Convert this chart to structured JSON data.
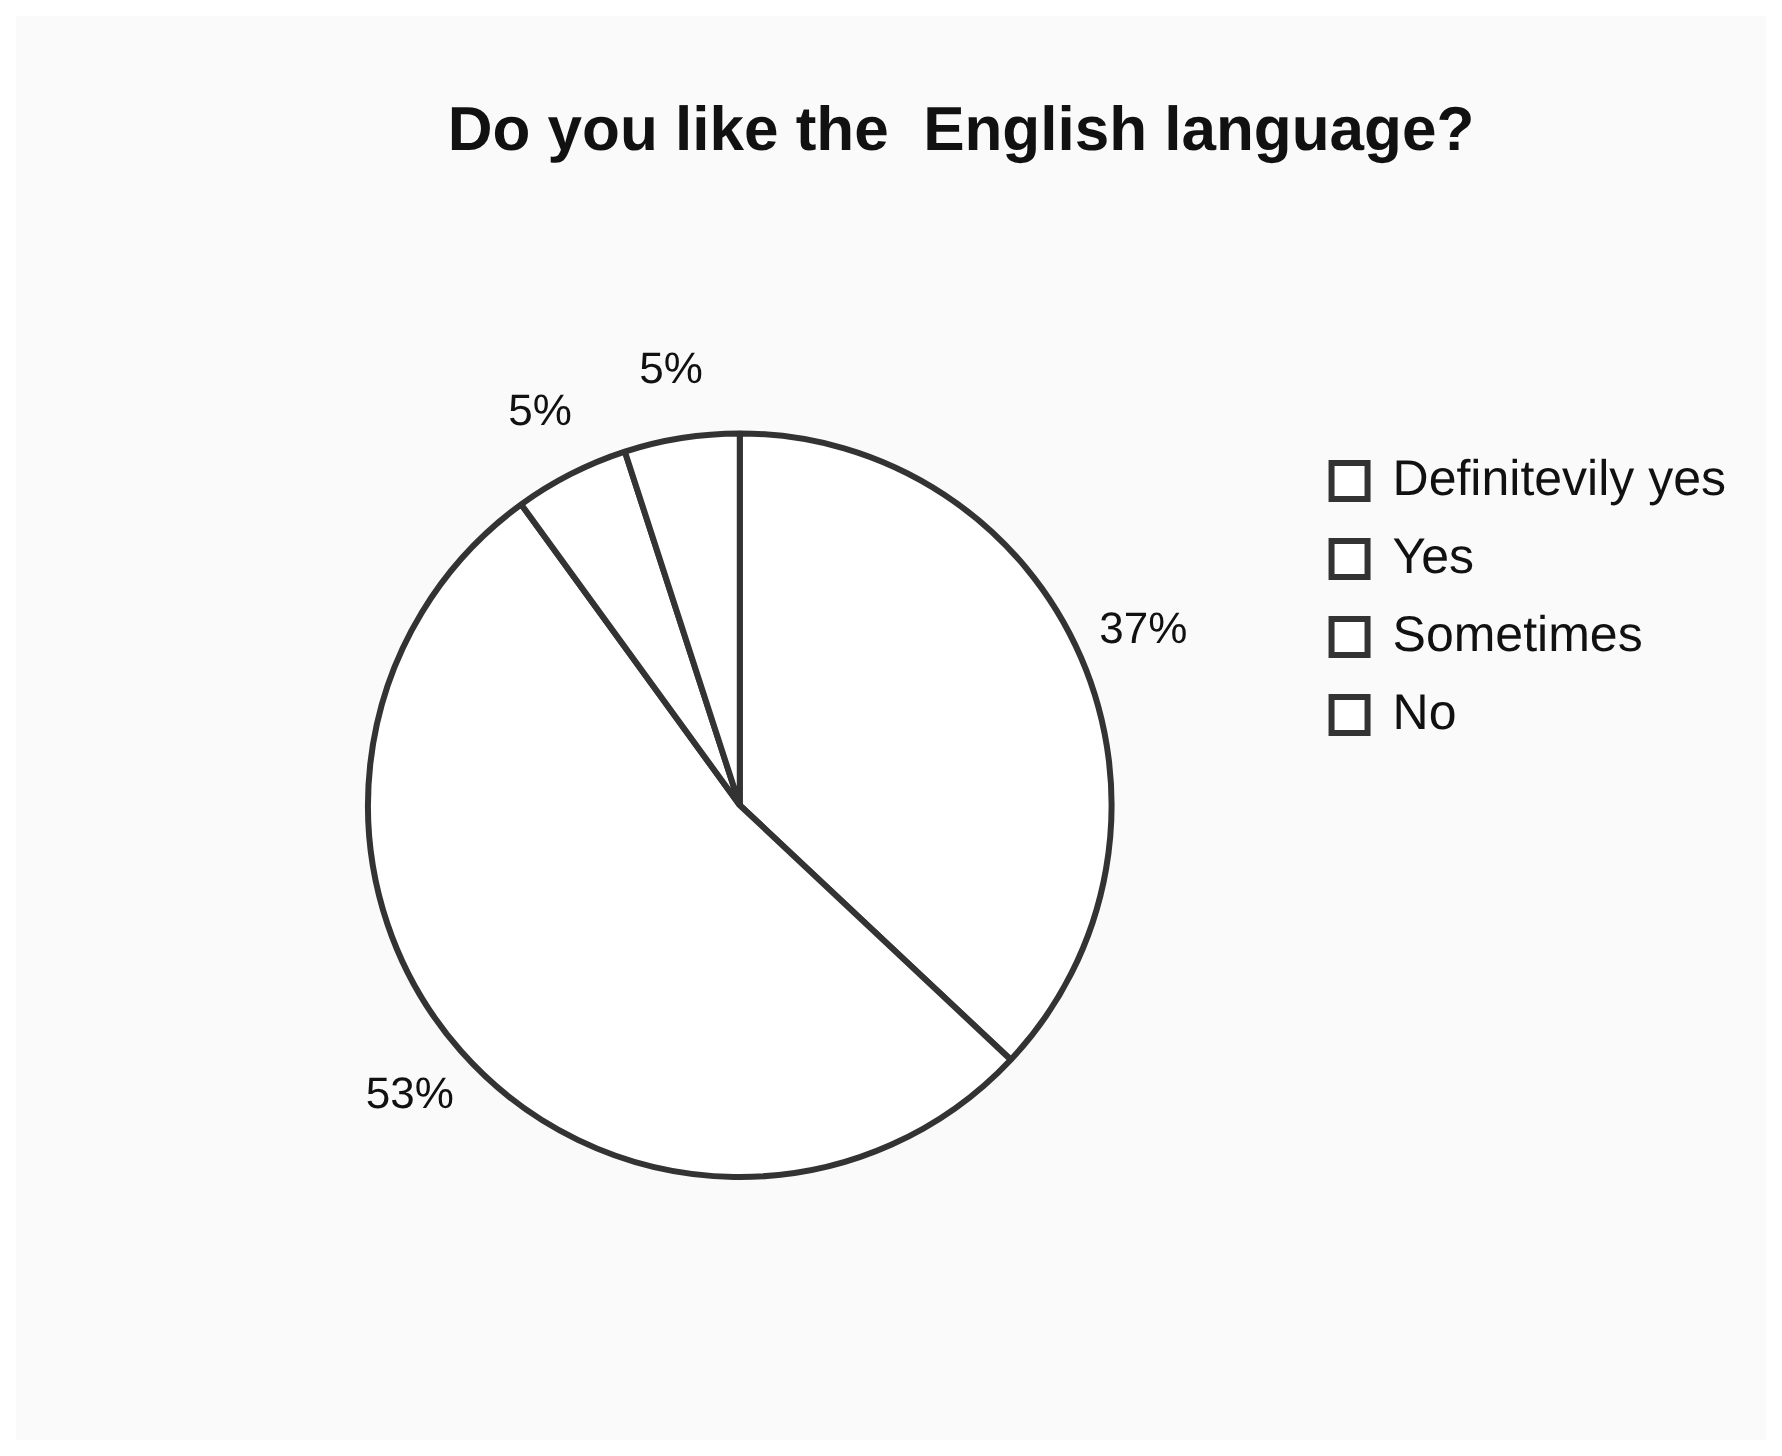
{
  "chart_data": {
    "type": "pie",
    "title": "Do you like the  English language?",
    "categories": [
      "Definitevily yes",
      "Yes",
      "Sometimes",
      "No"
    ],
    "values": [
      37,
      53,
      5,
      5
    ],
    "value_labels": [
      "37%",
      "53%",
      "5%",
      "5%"
    ],
    "colors": [
      "#ffffff",
      "#ffffff",
      "#ffffff",
      "#ffffff"
    ],
    "legend": "right"
  }
}
